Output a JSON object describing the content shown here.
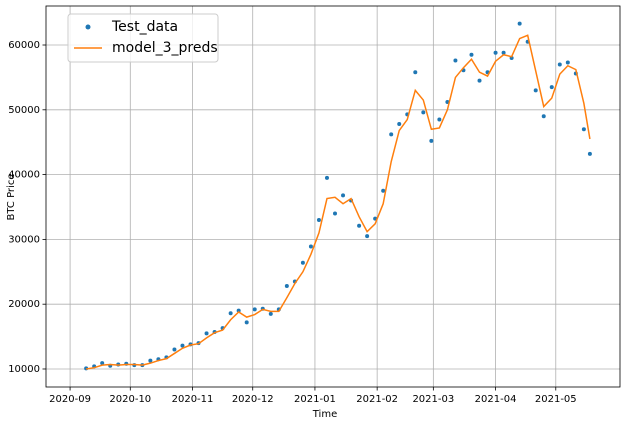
{
  "chart_data": {
    "type": "line",
    "xlabel": "Time",
    "ylabel": "BTC Price",
    "x": [
      "2020-09-09",
      "2020-09-13",
      "2020-09-17",
      "2020-09-21",
      "2020-09-25",
      "2020-09-29",
      "2020-10-03",
      "2020-10-07",
      "2020-10-11",
      "2020-10-15",
      "2020-10-19",
      "2020-10-23",
      "2020-10-27",
      "2020-10-31",
      "2020-11-04",
      "2020-11-08",
      "2020-11-12",
      "2020-11-16",
      "2020-11-20",
      "2020-11-24",
      "2020-11-28",
      "2020-12-02",
      "2020-12-06",
      "2020-12-10",
      "2020-12-14",
      "2020-12-18",
      "2020-12-22",
      "2020-12-26",
      "2020-12-30",
      "2021-01-03",
      "2021-01-07",
      "2021-01-11",
      "2021-01-15",
      "2021-01-19",
      "2021-01-23",
      "2021-01-27",
      "2021-01-31",
      "2021-02-04",
      "2021-02-08",
      "2021-02-12",
      "2021-02-16",
      "2021-02-20",
      "2021-02-24",
      "2021-02-28",
      "2021-03-04",
      "2021-03-08",
      "2021-03-12",
      "2021-03-16",
      "2021-03-20",
      "2021-03-24",
      "2021-03-28",
      "2021-04-01",
      "2021-04-05",
      "2021-04-09",
      "2021-04-13",
      "2021-04-17",
      "2021-04-21",
      "2021-04-25",
      "2021-04-29",
      "2021-05-03",
      "2021-05-07",
      "2021-05-11",
      "2021-05-15",
      "2021-05-18"
    ],
    "series": [
      {
        "name": "Test_data",
        "color": "#1f77b4",
        "style": "markers",
        "values": [
          10100,
          10400,
          10900,
          10500,
          10700,
          10800,
          10600,
          10600,
          11300,
          11500,
          11800,
          13000,
          13600,
          13800,
          14000,
          15500,
          15700,
          16300,
          18600,
          19000,
          17200,
          19200,
          19300,
          18500,
          19200,
          22800,
          23500,
          26400,
          28900,
          33000,
          39500,
          34000,
          36800,
          36000,
          32100,
          30500,
          33200,
          37500,
          46200,
          47800,
          49300,
          55800,
          49600,
          45200,
          48500,
          51200,
          57600,
          56100,
          58500,
          54500,
          55800,
          58800,
          58800,
          58000,
          63300,
          60500,
          53000,
          49000,
          53500,
          57000,
          57300,
          55600,
          47000,
          43200
        ]
      },
      {
        "name": "model_3_preds",
        "color": "#ff7f0e",
        "style": "line",
        "values": [
          10000,
          10200,
          10600,
          10700,
          10600,
          10700,
          10700,
          10600,
          10900,
          11300,
          11600,
          12400,
          13200,
          13700,
          13900,
          14800,
          15600,
          16000,
          17600,
          18800,
          18000,
          18400,
          19200,
          18900,
          18900,
          21000,
          23200,
          25000,
          27700,
          31000,
          36300,
          36500,
          35500,
          36300,
          33500,
          31200,
          32400,
          35500,
          42000,
          46800,
          48500,
          53000,
          51500,
          47000,
          47200,
          50000,
          55000,
          56500,
          57800,
          55800,
          55200,
          57500,
          58500,
          58200,
          61000,
          61500,
          56000,
          50500,
          51800,
          55500,
          56800,
          56200,
          51000,
          45500
        ]
      }
    ],
    "xlim": [
      "2020-08-20",
      "2021-06-02"
    ],
    "xticks": [
      {
        "value": "2020-09-01",
        "label": "2020-09"
      },
      {
        "value": "2020-10-01",
        "label": "2020-10"
      },
      {
        "value": "2020-11-01",
        "label": "2020-11"
      },
      {
        "value": "2020-12-01",
        "label": "2020-12"
      },
      {
        "value": "2021-01-01",
        "label": "2021-01"
      },
      {
        "value": "2021-02-01",
        "label": "2021-02"
      },
      {
        "value": "2021-03-01",
        "label": "2021-03"
      },
      {
        "value": "2021-04-01",
        "label": "2021-04"
      },
      {
        "value": "2021-05-01",
        "label": "2021-05"
      }
    ],
    "ylim": [
      7220,
      66020
    ],
    "yticks": [
      10000,
      20000,
      30000,
      40000,
      50000,
      60000
    ],
    "grid": true,
    "legend": "upper left"
  }
}
